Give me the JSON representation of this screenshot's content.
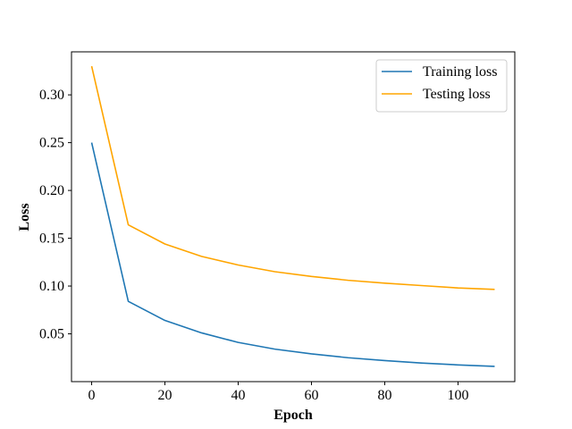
{
  "chart_data": {
    "type": "line",
    "title": "",
    "xlabel": "Epoch",
    "ylabel": "Loss",
    "xlim": [
      -5.5,
      115.5
    ],
    "ylim": [
      0.0,
      0.345
    ],
    "xticks": [
      0,
      20,
      40,
      60,
      80,
      100
    ],
    "xtick_labels": [
      "0",
      "20",
      "40",
      "60",
      "80",
      "100"
    ],
    "yticks": [
      0.05,
      0.1,
      0.15,
      0.2,
      0.25,
      0.3
    ],
    "ytick_labels": [
      "0.05",
      "0.10",
      "0.15",
      "0.20",
      "0.25",
      "0.30"
    ],
    "grid": false,
    "legend_position": "top-right",
    "x": [
      0,
      10,
      20,
      30,
      40,
      50,
      60,
      70,
      80,
      90,
      100,
      110
    ],
    "series": [
      {
        "name": "Training loss",
        "color": "#1f77b4",
        "values": [
          0.25,
          0.084,
          0.064,
          0.051,
          0.041,
          0.034,
          0.029,
          0.025,
          0.022,
          0.0195,
          0.0175,
          0.016
        ]
      },
      {
        "name": "Testing loss",
        "color": "#ffa500",
        "values": [
          0.33,
          0.164,
          0.144,
          0.131,
          0.122,
          0.115,
          0.11,
          0.106,
          0.103,
          0.1005,
          0.098,
          0.0965
        ]
      }
    ]
  }
}
